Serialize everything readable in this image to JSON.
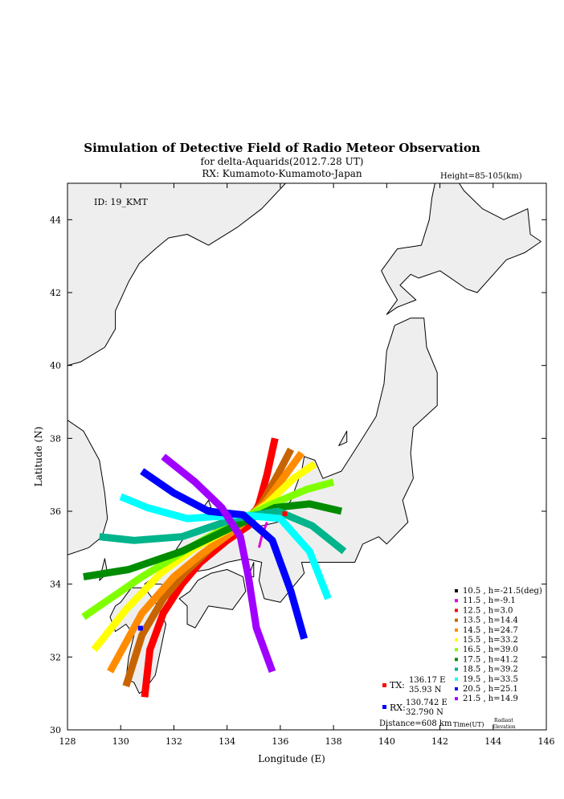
{
  "title": "Simulation of Detective Field of Radio Meteor Observation",
  "subtitle": "for delta-Aquarids(2012.7.28 UT)",
  "receiver_line": "RX: Kumamoto-Kumamoto-Japan",
  "height_label": "Height=85-105(km)",
  "id_label": "ID: 19_KMT",
  "chart_data": {
    "type": "scatter",
    "xlabel": "Longitude (E)",
    "ylabel": "Latitude (N)",
    "xlim": [
      128,
      146
    ],
    "ylim": [
      30,
      45
    ],
    "xticks": [
      "128",
      "130",
      "132",
      "134",
      "136",
      "138",
      "140",
      "142",
      "144",
      "146"
    ],
    "yticks": [
      "30",
      "32",
      "34",
      "36",
      "38",
      "40",
      "42",
      "44"
    ],
    "legend_position": "bottom-right",
    "series": [
      {
        "name": "10.5 ,  h=-21.5(deg)",
        "color": "#000000",
        "points": []
      },
      {
        "name": "11.5 ,  h=-9.1",
        "color": "#e000e0",
        "points": [
          [
            135.5,
            35.7
          ],
          [
            135.3,
            35.3
          ],
          [
            135.2,
            35.0
          ]
        ]
      },
      {
        "name": "12.5 ,  h=3.0",
        "color": "#ff0000",
        "points": [
          [
            135.8,
            38.0
          ],
          [
            135.5,
            37.0
          ],
          [
            135.2,
            36.2
          ],
          [
            134.8,
            35.6
          ],
          [
            134.0,
            35.2
          ],
          [
            133.0,
            34.6
          ],
          [
            132.3,
            34.0
          ],
          [
            131.6,
            33.2
          ],
          [
            131.1,
            32.2
          ],
          [
            130.9,
            30.9
          ]
        ]
      },
      {
        "name": "13.5 ,  h=14.4",
        "color": "#c86400",
        "points": [
          [
            136.4,
            37.7
          ],
          [
            135.9,
            37.0
          ],
          [
            135.3,
            36.2
          ],
          [
            134.5,
            35.6
          ],
          [
            133.4,
            35.0
          ],
          [
            132.4,
            34.3
          ],
          [
            131.6,
            33.6
          ],
          [
            130.8,
            32.6
          ],
          [
            130.2,
            31.2
          ]
        ]
      },
      {
        "name": "14.5 ,  h=24.7",
        "color": "#ff8c00",
        "points": [
          [
            136.8,
            37.6
          ],
          [
            136.2,
            37.0
          ],
          [
            135.4,
            36.2
          ],
          [
            134.3,
            35.5
          ],
          [
            133.0,
            34.8
          ],
          [
            132.0,
            34.2
          ],
          [
            130.8,
            33.2
          ],
          [
            129.6,
            31.6
          ]
        ]
      },
      {
        "name": "15.5 ,  h=33.2",
        "color": "#ffff00",
        "points": [
          [
            137.3,
            37.3
          ],
          [
            136.5,
            36.9
          ],
          [
            135.5,
            36.2
          ],
          [
            134.3,
            35.6
          ],
          [
            132.8,
            35.0
          ],
          [
            131.5,
            34.3
          ],
          [
            130.2,
            33.3
          ],
          [
            129.0,
            32.2
          ]
        ]
      },
      {
        "name": "16.5 ,  h=39.0",
        "color": "#80ff00",
        "points": [
          [
            138.0,
            36.8
          ],
          [
            137.0,
            36.6
          ],
          [
            135.7,
            36.2
          ],
          [
            134.3,
            35.7
          ],
          [
            132.6,
            35.0
          ],
          [
            130.8,
            34.2
          ],
          [
            128.6,
            33.1
          ]
        ]
      },
      {
        "name": "17.5 ,  h=41.2",
        "color": "#008c00",
        "points": [
          [
            138.3,
            36.0
          ],
          [
            137.1,
            36.2
          ],
          [
            135.8,
            36.1
          ],
          [
            134.3,
            35.6
          ],
          [
            132.3,
            34.9
          ],
          [
            130.3,
            34.4
          ],
          [
            128.6,
            34.2
          ]
        ]
      },
      {
        "name": "18.5 ,  h=39.2",
        "color": "#00b48c",
        "points": [
          [
            138.4,
            34.9
          ],
          [
            137.2,
            35.6
          ],
          [
            135.9,
            36.0
          ],
          [
            134.3,
            35.8
          ],
          [
            132.3,
            35.3
          ],
          [
            130.5,
            35.2
          ],
          [
            129.2,
            35.3
          ]
        ]
      },
      {
        "name": "19.5 ,  h=33.5",
        "color": "#00ffff",
        "points": [
          [
            137.8,
            33.6
          ],
          [
            137.1,
            34.9
          ],
          [
            136.0,
            35.8
          ],
          [
            134.5,
            35.9
          ],
          [
            132.5,
            35.8
          ],
          [
            131.0,
            36.1
          ],
          [
            130.0,
            36.4
          ]
        ]
      },
      {
        "name": "20.5 ,  h=25.1",
        "color": "#0000ff",
        "points": [
          [
            136.9,
            32.5
          ],
          [
            136.4,
            33.8
          ],
          [
            135.7,
            35.2
          ],
          [
            134.6,
            35.9
          ],
          [
            133.3,
            36.0
          ],
          [
            132.0,
            36.5
          ],
          [
            130.8,
            37.1
          ]
        ]
      },
      {
        "name": "21.5 ,  h=14.9",
        "color": "#a000ff",
        "points": [
          [
            135.7,
            31.6
          ],
          [
            135.1,
            32.8
          ],
          [
            134.8,
            34.2
          ],
          [
            134.5,
            35.3
          ],
          [
            133.8,
            36.1
          ],
          [
            132.8,
            36.8
          ],
          [
            131.6,
            37.5
          ]
        ]
      }
    ],
    "tx": {
      "label": "TX:",
      "lon_text": "136.17 E",
      "lat_text": "35.93 N",
      "lon": 136.17,
      "lat": 35.93,
      "color": "#ff0000"
    },
    "rx": {
      "label": "RX:",
      "lon_text": "130.742 E",
      "lat_text": "32.790 N",
      "lon": 130.742,
      "lat": 32.79,
      "color": "#0000ff"
    },
    "distance": "Distance=608 km",
    "legend_footer": {
      "time": "Time(UT)",
      "radiant1": "Radiant",
      "radiant2": "Elevation"
    }
  },
  "map": {
    "land_color": "#eeeeee",
    "coast_color": "#000000",
    "honshu": [
      [
        130.9,
        34.0
      ],
      [
        131.6,
        34.4
      ],
      [
        132.4,
        35.3
      ],
      [
        133.4,
        35.5
      ],
      [
        134.5,
        35.6
      ],
      [
        135.3,
        35.6
      ],
      [
        135.9,
        35.7
      ],
      [
        136.4,
        36.3
      ],
      [
        136.8,
        37.1
      ],
      [
        136.9,
        37.5
      ],
      [
        137.3,
        37.4
      ],
      [
        137.6,
        36.9
      ],
      [
        138.3,
        37.1
      ],
      [
        139.0,
        37.9
      ],
      [
        139.6,
        38.6
      ],
      [
        139.9,
        39.5
      ],
      [
        140.0,
        40.4
      ],
      [
        140.3,
        41.1
      ],
      [
        140.9,
        41.3
      ],
      [
        141.4,
        41.3
      ],
      [
        141.5,
        40.5
      ],
      [
        141.9,
        39.8
      ],
      [
        141.9,
        38.9
      ],
      [
        141.0,
        38.3
      ],
      [
        140.9,
        37.6
      ],
      [
        141.0,
        36.9
      ],
      [
        140.6,
        36.3
      ],
      [
        140.8,
        35.7
      ],
      [
        140.0,
        35.1
      ],
      [
        139.7,
        35.3
      ],
      [
        139.1,
        35.1
      ],
      [
        138.8,
        34.6
      ],
      [
        138.2,
        34.6
      ],
      [
        137.3,
        34.6
      ],
      [
        136.8,
        34.6
      ],
      [
        136.9,
        34.3
      ],
      [
        136.0,
        33.5
      ],
      [
        135.4,
        33.6
      ],
      [
        135.2,
        34.1
      ],
      [
        135.3,
        34.6
      ],
      [
        134.7,
        34.7
      ],
      [
        134.0,
        34.6
      ],
      [
        133.3,
        34.4
      ],
      [
        132.4,
        34.3
      ],
      [
        132.0,
        33.9
      ],
      [
        131.5,
        34.0
      ]
    ],
    "hokkaido": [
      [
        140.0,
        41.4
      ],
      [
        140.4,
        41.8
      ],
      [
        140.0,
        42.3
      ],
      [
        139.8,
        42.6
      ],
      [
        140.4,
        43.2
      ],
      [
        141.3,
        43.3
      ],
      [
        141.6,
        44.0
      ],
      [
        141.7,
        44.6
      ],
      [
        141.9,
        45.3
      ],
      [
        142.2,
        45.6
      ],
      [
        142.9,
        44.8
      ],
      [
        143.6,
        44.3
      ],
      [
        144.4,
        44.0
      ],
      [
        145.3,
        44.3
      ],
      [
        145.4,
        43.6
      ],
      [
        145.8,
        43.4
      ],
      [
        145.2,
        43.1
      ],
      [
        144.5,
        42.9
      ],
      [
        143.4,
        42.0
      ],
      [
        143.0,
        42.1
      ],
      [
        142.0,
        42.6
      ],
      [
        141.2,
        42.4
      ],
      [
        140.9,
        42.5
      ],
      [
        140.5,
        42.2
      ],
      [
        141.1,
        41.8
      ],
      [
        140.4,
        41.6
      ]
    ],
    "kyushu": [
      [
        130.0,
        33.5
      ],
      [
        130.4,
        33.9
      ],
      [
        130.9,
        33.9
      ],
      [
        131.4,
        33.4
      ],
      [
        131.7,
        32.9
      ],
      [
        131.5,
        32.2
      ],
      [
        131.3,
        31.5
      ],
      [
        130.9,
        31.1
      ],
      [
        130.7,
        31.0
      ],
      [
        130.5,
        31.3
      ],
      [
        130.2,
        31.4
      ],
      [
        130.3,
        32.0
      ],
      [
        130.5,
        32.6
      ],
      [
        130.2,
        32.9
      ],
      [
        129.8,
        32.7
      ],
      [
        129.6,
        33.1
      ],
      [
        129.8,
        33.4
      ]
    ],
    "shikoku": [
      [
        132.2,
        33.6
      ],
      [
        132.5,
        33.4
      ],
      [
        132.5,
        32.9
      ],
      [
        132.8,
        32.8
      ],
      [
        133.3,
        33.4
      ],
      [
        134.2,
        33.3
      ],
      [
        134.7,
        33.8
      ],
      [
        134.6,
        34.2
      ],
      [
        134.0,
        34.4
      ],
      [
        133.4,
        34.3
      ],
      [
        132.9,
        34.1
      ],
      [
        132.6,
        33.8
      ]
    ],
    "korea": [
      [
        128.0,
        38.5
      ],
      [
        128.6,
        38.2
      ],
      [
        129.2,
        37.4
      ],
      [
        129.4,
        36.5
      ],
      [
        129.5,
        35.8
      ],
      [
        129.3,
        35.3
      ],
      [
        128.8,
        35.0
      ],
      [
        128.0,
        34.8
      ],
      [
        128.0,
        38.5
      ]
    ],
    "mainland": [
      [
        128.0,
        40.0
      ],
      [
        128.5,
        40.1
      ],
      [
        129.4,
        40.5
      ],
      [
        129.8,
        41.0
      ],
      [
        129.8,
        41.5
      ],
      [
        130.3,
        42.3
      ],
      [
        130.7,
        42.8
      ],
      [
        131.3,
        43.2
      ],
      [
        131.8,
        43.5
      ],
      [
        132.5,
        43.6
      ],
      [
        133.3,
        43.3
      ],
      [
        134.4,
        43.8
      ],
      [
        135.3,
        44.3
      ],
      [
        136.2,
        45.0
      ],
      [
        128.0,
        45.0
      ]
    ],
    "sakhalin": [
      [
        141.8,
        45.0
      ],
      [
        142.0,
        45.3
      ],
      [
        142.3,
        45.0
      ]
    ],
    "sado": [
      [
        138.2,
        37.8
      ],
      [
        138.5,
        38.2
      ],
      [
        138.5,
        37.9
      ]
    ],
    "tsushima": [
      [
        129.2,
        34.1
      ],
      [
        129.4,
        34.7
      ],
      [
        129.5,
        34.3
      ]
    ],
    "awaji": [
      [
        134.8,
        34.2
      ],
      [
        135.0,
        34.6
      ],
      [
        135.0,
        34.2
      ]
    ],
    "oki": [
      [
        133.1,
        36.1
      ],
      [
        133.3,
        36.3
      ],
      [
        133.4,
        36.1
      ]
    ]
  }
}
